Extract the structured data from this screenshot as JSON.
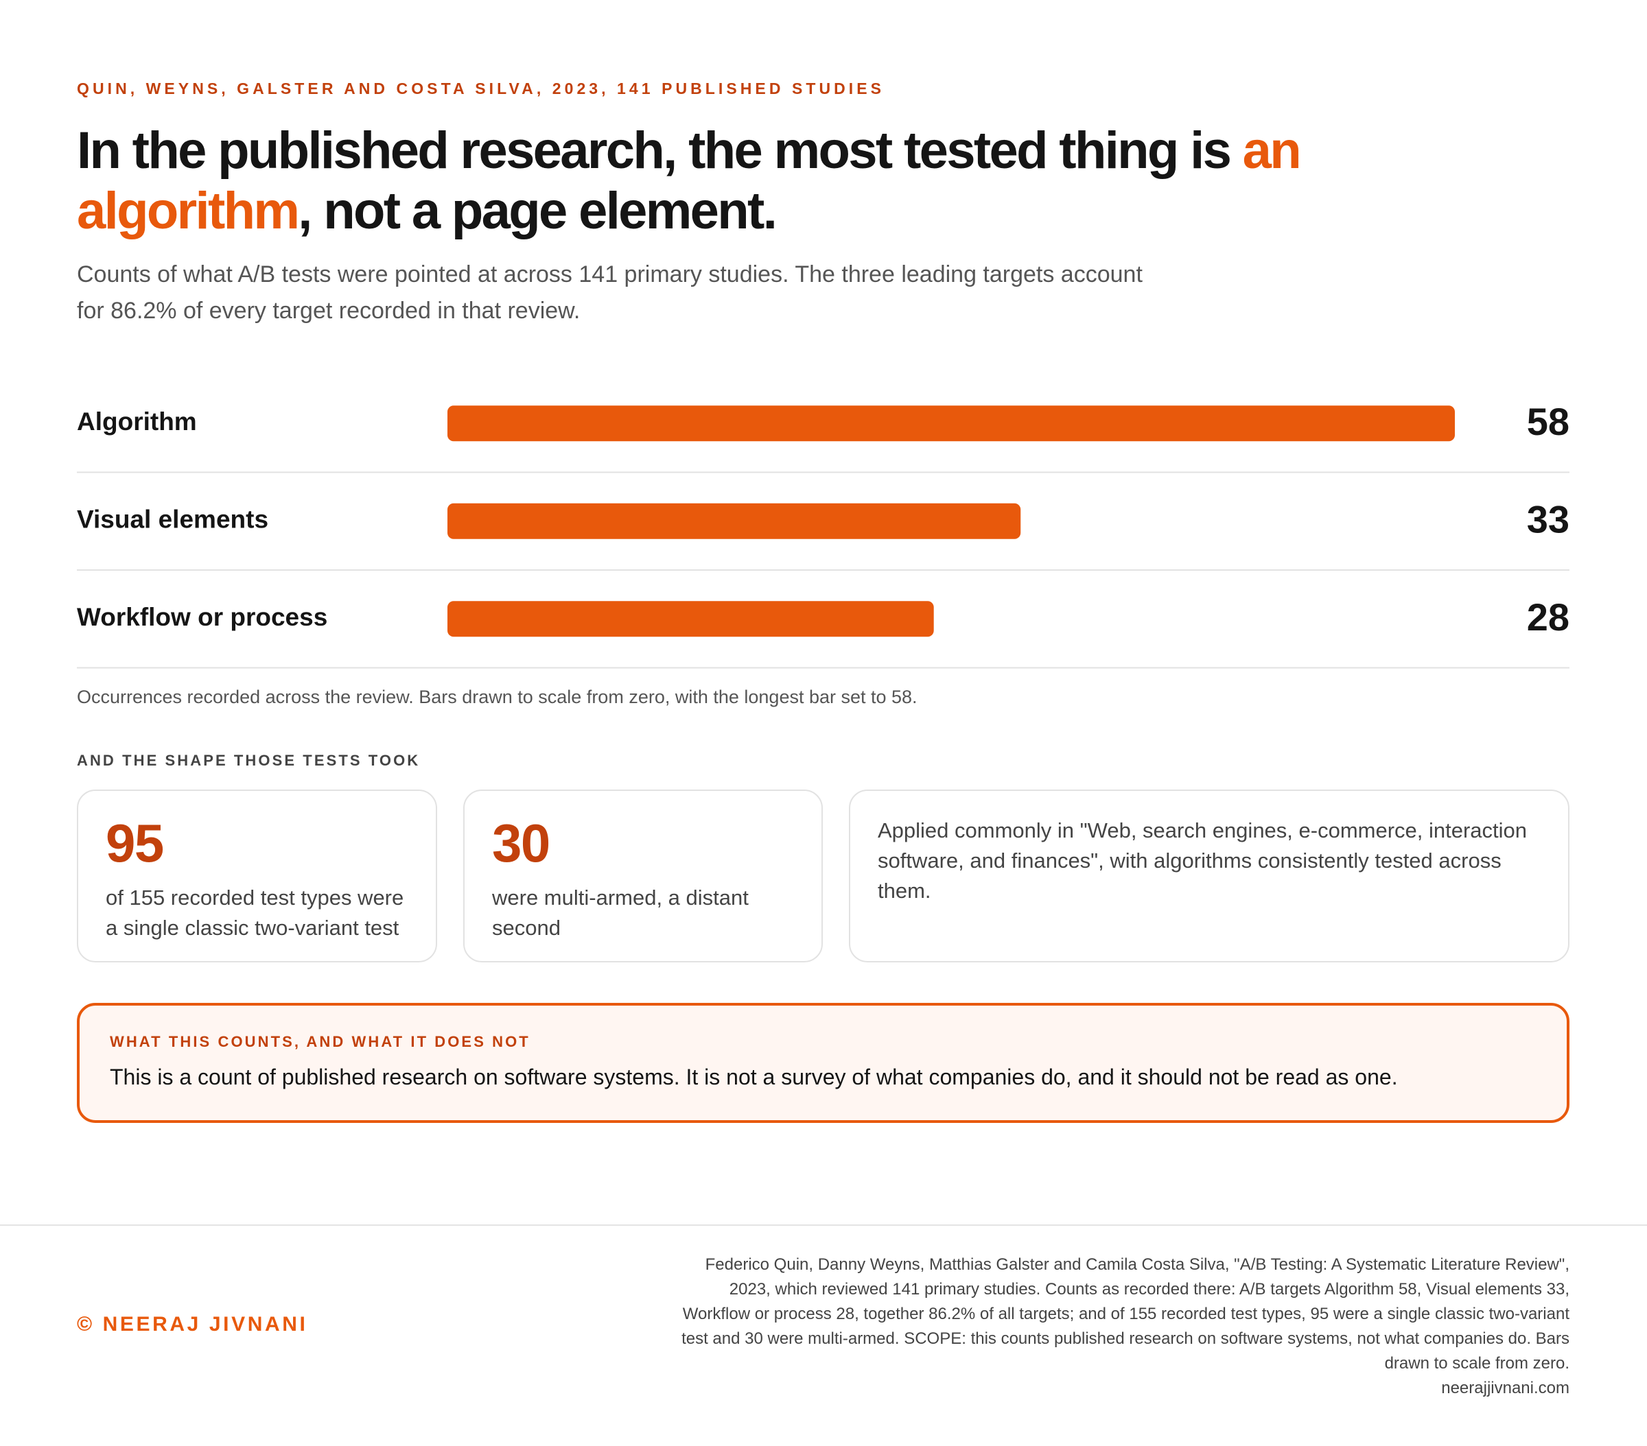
{
  "kicker": "QUIN, WEYNS, GALSTER AND COSTA SILVA, 2023, 141 PUBLISHED STUDIES",
  "headline": {
    "before": "In the published research, the most tested thing is ",
    "highlight": "an algorithm",
    "after": ", not a page element."
  },
  "subtitle": "Counts of what A/B tests were pointed at across 141 primary studies. The three leading targets account for 86.2% of every target recorded in that review.",
  "chart_data": {
    "type": "bar",
    "orientation": "horizontal",
    "categories": [
      "Algorithm",
      "Visual elements",
      "Workflow or process"
    ],
    "values": [
      58,
      33,
      28
    ],
    "color": "#e8590c",
    "xlim": [
      0,
      58
    ],
    "caption": "Occurrences recorded across the review. Bars drawn to scale from zero, with the longest bar set to 58."
  },
  "section_label": "AND THE SHAPE THOSE TESTS TOOK",
  "cards": [
    {
      "value": 95,
      "text": "of 155 recorded test types were a single classic two-variant test"
    },
    {
      "value": 30,
      "text": "were multi-armed, a distant second"
    },
    {
      "text": "Applied commonly in \"Web, search engines, e-commerce, interaction software, and finances\", with algorithms consistently tested across them."
    }
  ],
  "note": {
    "label": "WHAT THIS COUNTS, AND WHAT IT DOES NOT",
    "text": "This is a count of published research on software systems. It is not a survey of what companies do, and it should not be read as one."
  },
  "footer": {
    "copyright": "© NEERAJ JIVNANI",
    "source_lines": [
      "Federico Quin, Danny Weyns, Matthias Galster and Camila Costa Silva, \"A/B Testing: A Systematic Literature Review\",",
      "2023, which reviewed 141 primary studies. Counts as recorded there: A/B targets Algorithm 58, Visual elements 33,",
      "Workflow or process 28, together 86.2% of all targets; and of 155 recorded test types, 95 were a single classic two-variant",
      "test and 30 were multi-armed. SCOPE: this counts published research on software systems, not what companies do. Bars",
      "drawn to scale from zero.",
      "neerajjivnani.com"
    ]
  }
}
